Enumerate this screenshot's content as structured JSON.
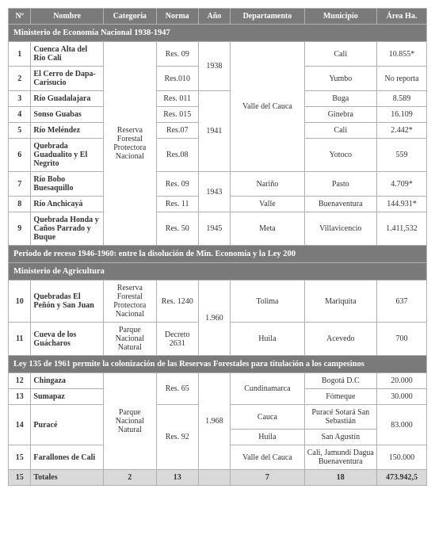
{
  "headers": [
    "Nº",
    "Nombre",
    "Categoría",
    "Norma",
    "Año",
    "Departamento",
    "Municipio",
    "Área Ha."
  ],
  "section1": "Ministerio de Economía Nacional 1938-1947",
  "cat1": "Reserva Forestal Protectora Nacional",
  "yr1938": "1938",
  "yr1941": "1941",
  "yr1943": "1943",
  "yr1945": "1945",
  "dep_valle": "Valle del Cauca",
  "r1": {
    "n": "1",
    "name": "Cuenca Alta del Río Cali",
    "norma": "Res. 09",
    "mun": "Cali",
    "area": "10.855*"
  },
  "r2": {
    "n": "2",
    "name": "El Cerro de Dapa- Carisucio",
    "norma": "Res.010",
    "mun": "Yumbo",
    "area": "No reporta"
  },
  "r3": {
    "n": "3",
    "name": "Río Guadalajara",
    "norma": "Res. 011",
    "mun": "Buga",
    "area": "8.589"
  },
  "r4": {
    "n": "4",
    "name": "Sonso Guabas",
    "norma": "Res. 015",
    "mun": "Ginebra",
    "area": "16.109"
  },
  "r5": {
    "n": "5",
    "name": "Río Meléndez",
    "norma": "Res.07",
    "mun": "Cali",
    "area": "2.442*"
  },
  "r6": {
    "n": "6",
    "name": "Quebrada Guadualito y El Negrito",
    "norma": "Res.08",
    "mun": "Yotoco",
    "area": "559"
  },
  "r7": {
    "n": "7",
    "name": "Río Bobo Buesaquillo",
    "norma": "Res. 09",
    "dep": "Nariño",
    "mun": "Pasto",
    "area": "4.709*"
  },
  "r8": {
    "n": "8",
    "name": "Río Anchicayá",
    "norma": "Res. 11",
    "dep": "Valle",
    "mun": "Buenaventura",
    "area": "144.931*"
  },
  "r9": {
    "n": "9",
    "name": "Quebrada Honda y Caños Parrado y Buque",
    "norma": "Res. 50",
    "dep": "Meta",
    "mun": "Villavicencio",
    "area": "1.411,532"
  },
  "section2": "Periodo de receso 1946-1960: entre la disolución de Min. Economía y la Ley 200",
  "section3": "Ministerio de Agricultura",
  "yr1960": "1.960",
  "r10": {
    "n": "10",
    "name": "Quebradas El Peñón y San Juan",
    "cat": "Reserva Forestal Protectora Nacional",
    "norma": "Res. 1240",
    "dep": "Tolima",
    "mun": "Mariquita",
    "area": "637"
  },
  "r11": {
    "n": "11",
    "name": "Cueva de los Guácharos",
    "cat": "Parque Nacional Natural",
    "norma": "Decreto 2631",
    "dep": "Huila",
    "mun": "Acevedo",
    "area": "700"
  },
  "section4": "Ley 135 de 1961 permite la colonización de las Reservas Forestales para titulación a los campesinos",
  "cat2": "Parque Nacional Natural",
  "yr1968": "1.968",
  "r12": {
    "n": "12",
    "name": "Chingaza",
    "norma": "Res. 65",
    "dep": "Cundinamarca",
    "mun": "Bogotá D.C",
    "area": "20.000"
  },
  "r13": {
    "n": "13",
    "name": "Sumapaz",
    "mun": "Fómeque",
    "area": "30.000"
  },
  "r14": {
    "n": "14",
    "name": "Puracé",
    "norma": "Res. 92",
    "dep1": "Cauca",
    "mun1": "Puracé Sotará San Sebastián",
    "area": "83.000",
    "dep2": "Huila",
    "mun2": "San Agustín"
  },
  "r15": {
    "n": "15",
    "name": "Farallones de Cali",
    "dep": "Valle del Cauca",
    "mun": "Cali, Jamundí Dagua Buenaventura",
    "area": "150.000"
  },
  "totals": {
    "n": "15",
    "name": "Totales",
    "cat": "2",
    "norma": "13",
    "ano": "",
    "dep": "7",
    "mun": "18",
    "area": "473.942,5"
  }
}
